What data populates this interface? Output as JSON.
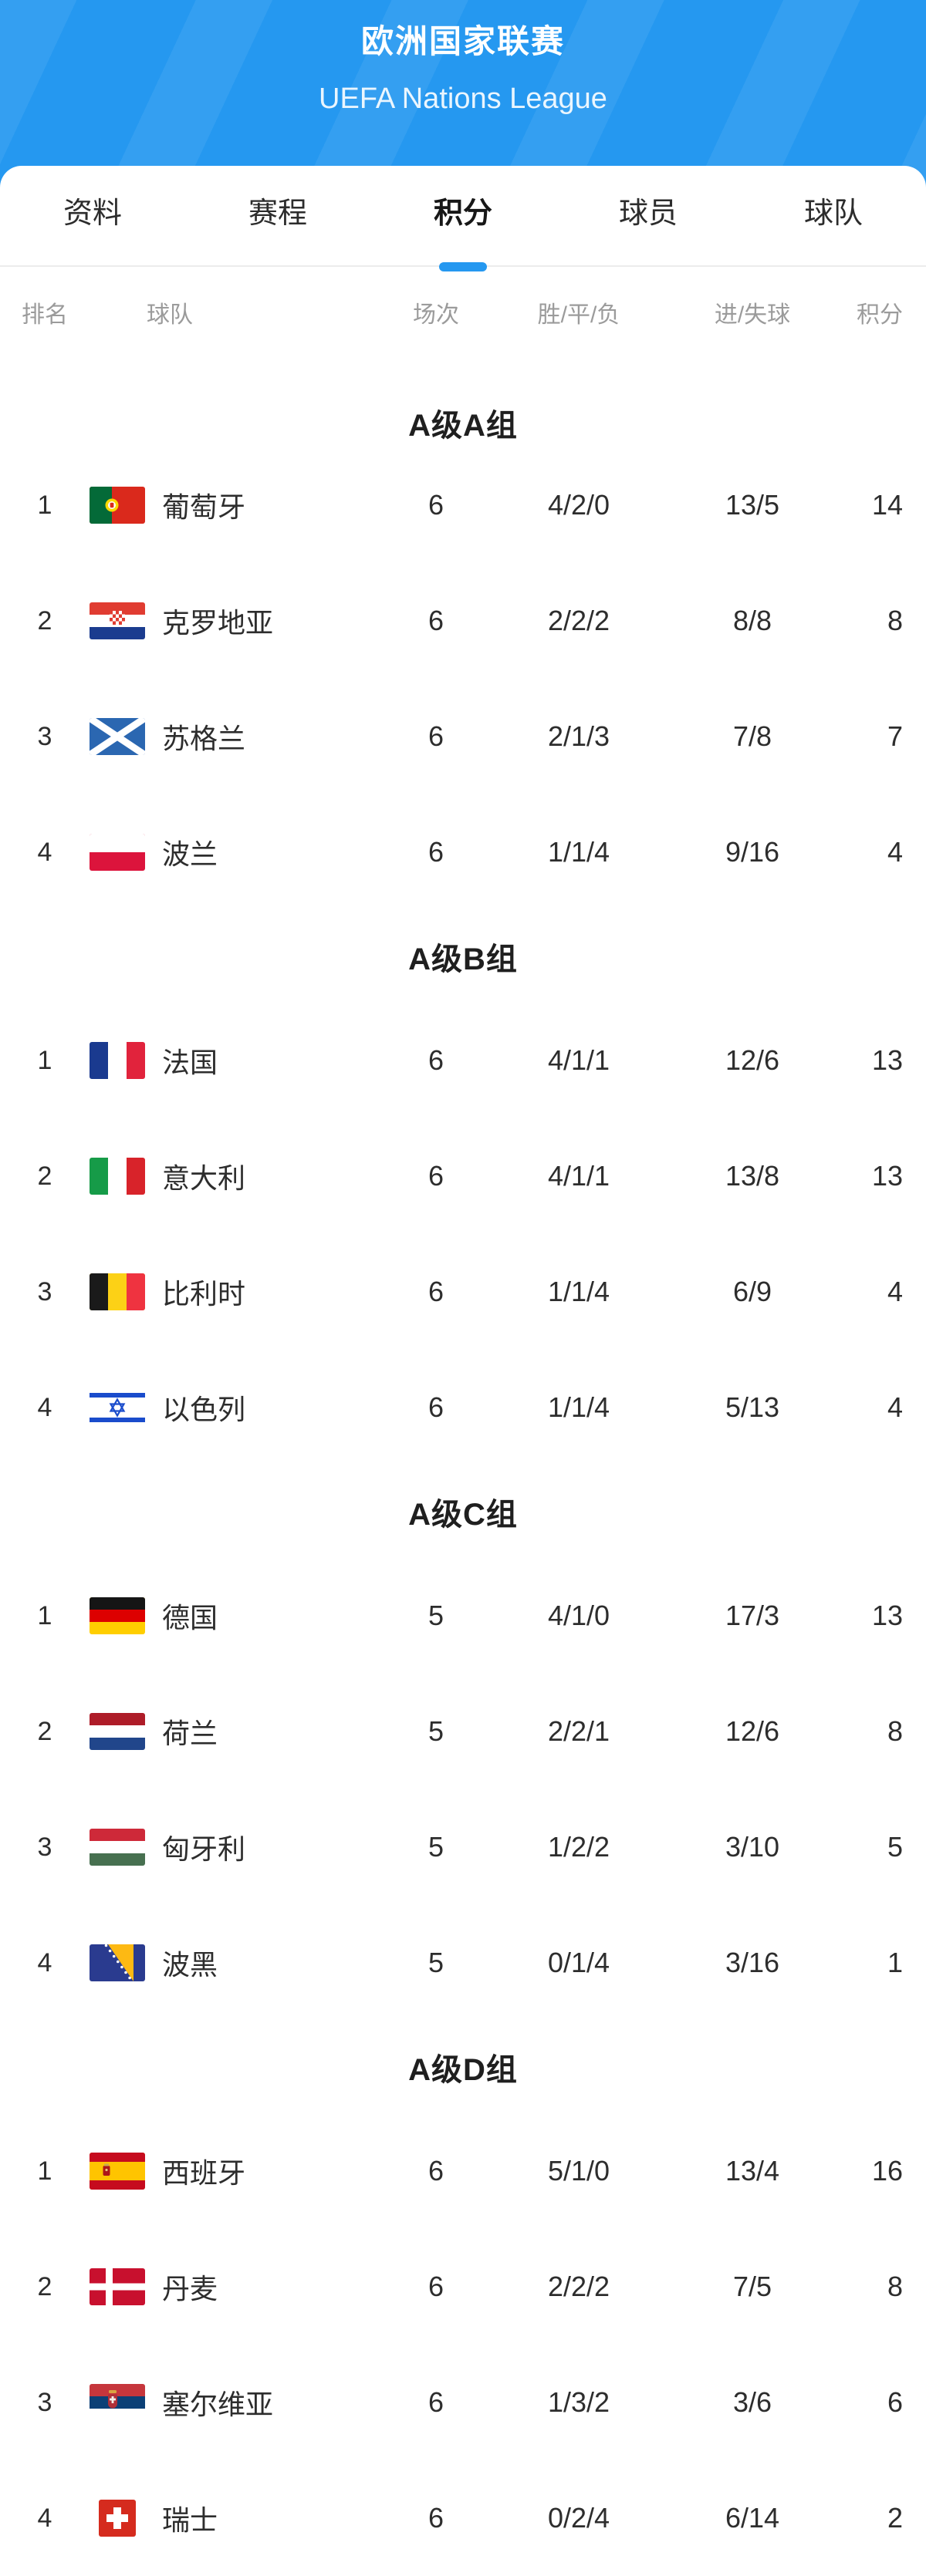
{
  "colors": {
    "accent": "#2598f0"
  },
  "header": {
    "title": "欧洲国家联赛",
    "subtitle": "UEFA Nations League"
  },
  "tabs": [
    {
      "label": "资料",
      "active": false
    },
    {
      "label": "赛程",
      "active": false
    },
    {
      "label": "积分",
      "active": true
    },
    {
      "label": "球员",
      "active": false
    },
    {
      "label": "球队",
      "active": false
    }
  ],
  "table": {
    "columns": {
      "rank": "排名",
      "team": "球队",
      "matches": "场次",
      "wdl": "胜/平/负",
      "goals": "进/失球",
      "points": "积分"
    }
  },
  "groups": [
    {
      "title": "A级A组",
      "rows": [
        {
          "rank": "1",
          "flag": "portugal",
          "team": "葡萄牙",
          "matches": "6",
          "wdl": "4/2/0",
          "goals": "13/5",
          "points": "14"
        },
        {
          "rank": "2",
          "flag": "croatia",
          "team": "克罗地亚",
          "matches": "6",
          "wdl": "2/2/2",
          "goals": "8/8",
          "points": "8"
        },
        {
          "rank": "3",
          "flag": "scotland",
          "team": "苏格兰",
          "matches": "6",
          "wdl": "2/1/3",
          "goals": "7/8",
          "points": "7"
        },
        {
          "rank": "4",
          "flag": "poland",
          "team": "波兰",
          "matches": "6",
          "wdl": "1/1/4",
          "goals": "9/16",
          "points": "4"
        }
      ]
    },
    {
      "title": "A级B组",
      "rows": [
        {
          "rank": "1",
          "flag": "france",
          "team": "法国",
          "matches": "6",
          "wdl": "4/1/1",
          "goals": "12/6",
          "points": "13"
        },
        {
          "rank": "2",
          "flag": "italy",
          "team": "意大利",
          "matches": "6",
          "wdl": "4/1/1",
          "goals": "13/8",
          "points": "13"
        },
        {
          "rank": "3",
          "flag": "belgium",
          "team": "比利时",
          "matches": "6",
          "wdl": "1/1/4",
          "goals": "6/9",
          "points": "4"
        },
        {
          "rank": "4",
          "flag": "israel",
          "team": "以色列",
          "matches": "6",
          "wdl": "1/1/4",
          "goals": "5/13",
          "points": "4"
        }
      ]
    },
    {
      "title": "A级C组",
      "rows": [
        {
          "rank": "1",
          "flag": "germany",
          "team": "德国",
          "matches": "5",
          "wdl": "4/1/0",
          "goals": "17/3",
          "points": "13"
        },
        {
          "rank": "2",
          "flag": "netherlands",
          "team": "荷兰",
          "matches": "5",
          "wdl": "2/2/1",
          "goals": "12/6",
          "points": "8"
        },
        {
          "rank": "3",
          "flag": "hungary",
          "team": "匈牙利",
          "matches": "5",
          "wdl": "1/2/2",
          "goals": "3/10",
          "points": "5"
        },
        {
          "rank": "4",
          "flag": "bosnia",
          "team": "波黑",
          "matches": "5",
          "wdl": "0/1/4",
          "goals": "3/16",
          "points": "1"
        }
      ]
    },
    {
      "title": "A级D组",
      "rows": [
        {
          "rank": "1",
          "flag": "spain",
          "team": "西班牙",
          "matches": "6",
          "wdl": "5/1/0",
          "goals": "13/4",
          "points": "16"
        },
        {
          "rank": "2",
          "flag": "denmark",
          "team": "丹麦",
          "matches": "6",
          "wdl": "2/2/2",
          "goals": "7/5",
          "points": "8"
        },
        {
          "rank": "3",
          "flag": "serbia",
          "team": "塞尔维亚",
          "matches": "6",
          "wdl": "1/3/2",
          "goals": "3/6",
          "points": "6"
        },
        {
          "rank": "4",
          "flag": "switzerland",
          "team": "瑞士",
          "matches": "6",
          "wdl": "0/2/4",
          "goals": "6/14",
          "points": "2"
        }
      ]
    }
  ]
}
